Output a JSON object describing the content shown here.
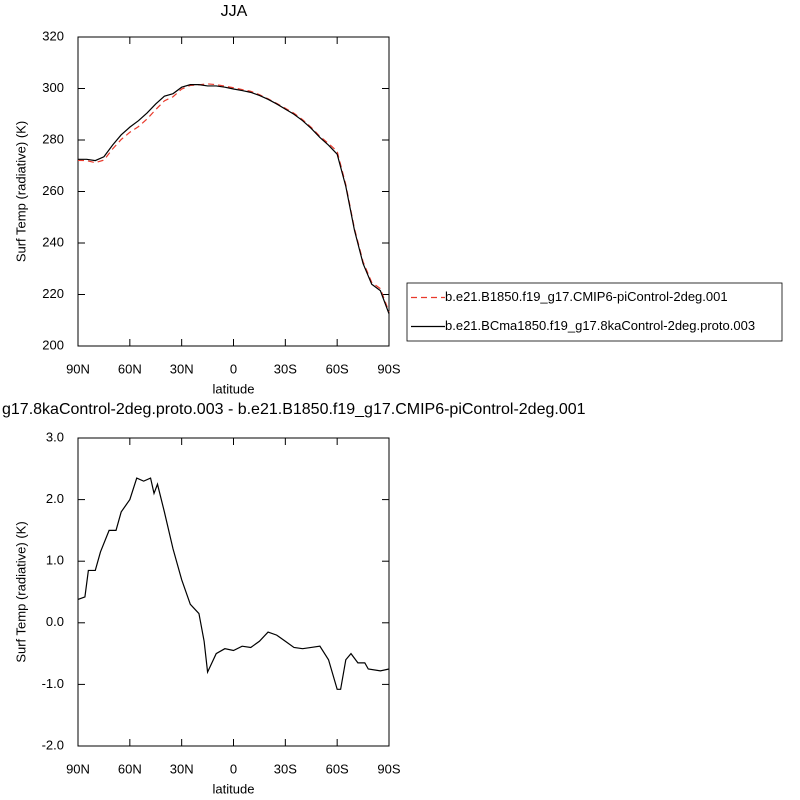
{
  "chart_data": [
    {
      "type": "line",
      "title": "JJA",
      "xlabel": "latitude",
      "ylabel": "Surf Temp (radiative) (K)",
      "x": [
        90,
        85,
        80,
        75,
        70,
        65,
        60,
        55,
        50,
        45,
        40,
        35,
        30,
        25,
        20,
        15,
        10,
        5,
        0,
        -5,
        -10,
        -15,
        -20,
        -25,
        -30,
        -35,
        -40,
        -45,
        -50,
        -55,
        -60,
        -65,
        -70,
        -75,
        -80,
        -85,
        -90
      ],
      "series": [
        {
          "name": "b.e21.B1850.f19_g17.CMIP6-piControl-2deg.001",
          "color": "#e8392b",
          "line_style": "dashed",
          "values": [
            272.1,
            272.0,
            271.2,
            272.2,
            276.5,
            280.2,
            283,
            285.2,
            288.2,
            291.8,
            295.2,
            296.8,
            299.8,
            301.2,
            301.4,
            301.8,
            301.5,
            300.9,
            300.3,
            299.6,
            298.9,
            297.6,
            296.0,
            294.2,
            292.3,
            290.4,
            287.9,
            284.9,
            281.4,
            278.6,
            275.6,
            262.6,
            245.6,
            232.7,
            224.7,
            222.3,
            213.2
          ]
        },
        {
          "name": "b.e21.BCma1850.f19_g17.8kaControl-2deg.proto.003",
          "color": "#000000",
          "line_style": "solid",
          "values": [
            272.5,
            272.5,
            272,
            273.5,
            278,
            282,
            285,
            287.5,
            290.5,
            294,
            297,
            298,
            300.5,
            301.5,
            301.5,
            301,
            301,
            300.5,
            299.8,
            299.2,
            298.5,
            297.3,
            295.8,
            294,
            292,
            290,
            287.5,
            284.5,
            281,
            278,
            274.5,
            262,
            245,
            232,
            224,
            221.5,
            212.5
          ]
        }
      ],
      "xlim": [
        90,
        -90
      ],
      "xticks": [
        {
          "value": 90,
          "label": "90N"
        },
        {
          "value": 60,
          "label": "60N"
        },
        {
          "value": 30,
          "label": "30N"
        },
        0,
        {
          "value": -30,
          "label": "30S"
        },
        {
          "value": -60,
          "label": "60S"
        },
        {
          "value": -90,
          "label": "90S"
        }
      ],
      "ylim": [
        200,
        320
      ],
      "yticks": [
        200,
        220,
        240,
        260,
        280,
        300,
        320
      ],
      "legend": "right"
    },
    {
      "type": "line",
      "title": "g17.8kaControl-2deg.proto.003 - b.e21.B1850.f19_g17.CMIP6-piControl-2deg.001",
      "xlabel": "latitude",
      "ylabel": "Surf Temp (radiative) (K)",
      "x": [
        90,
        86,
        84,
        80,
        77,
        72,
        68,
        65,
        60,
        56,
        52,
        48,
        46,
        44,
        40,
        35,
        30,
        25,
        20,
        17,
        15,
        10,
        5,
        0,
        -5,
        -10,
        -15,
        -20,
        -25,
        -30,
        -35,
        -40,
        -45,
        -50,
        -55,
        -60,
        -62,
        -65,
        -68,
        -72,
        -76,
        -78,
        -85,
        -90
      ],
      "series": [
        {
          "name": null,
          "color": "#000000",
          "line_style": "solid",
          "values": [
            0.38,
            0.42,
            0.85,
            0.85,
            1.15,
            1.5,
            1.5,
            1.8,
            2.0,
            2.35,
            2.3,
            2.35,
            2.1,
            2.25,
            1.8,
            1.2,
            0.7,
            0.3,
            0.15,
            -0.3,
            -0.8,
            -0.5,
            -0.42,
            -0.45,
            -0.38,
            -0.4,
            -0.3,
            -0.15,
            -0.2,
            -0.3,
            -0.4,
            -0.42,
            -0.4,
            -0.38,
            -0.6,
            -1.08,
            -1.08,
            -0.6,
            -0.5,
            -0.65,
            -0.65,
            -0.75,
            -0.78,
            -0.75
          ]
        }
      ],
      "xlim": [
        90,
        -90
      ],
      "xticks": [
        {
          "value": 90,
          "label": "90N"
        },
        {
          "value": 60,
          "label": "60N"
        },
        {
          "value": 30,
          "label": "30N"
        },
        0,
        {
          "value": -30,
          "label": "30S"
        },
        {
          "value": -60,
          "label": "60S"
        },
        {
          "value": -90,
          "label": "90S"
        }
      ],
      "ylim": [
        -2,
        3
      ],
      "yticks": [
        {
          "value": -2,
          "label": "-2.0"
        },
        {
          "value": -1,
          "label": "-1.0"
        },
        {
          "value": 0,
          "label": "0.0"
        },
        {
          "value": 1,
          "label": "1.0"
        },
        {
          "value": 2,
          "label": "2.0"
        },
        {
          "value": 3,
          "label": "3.0"
        }
      ]
    }
  ]
}
